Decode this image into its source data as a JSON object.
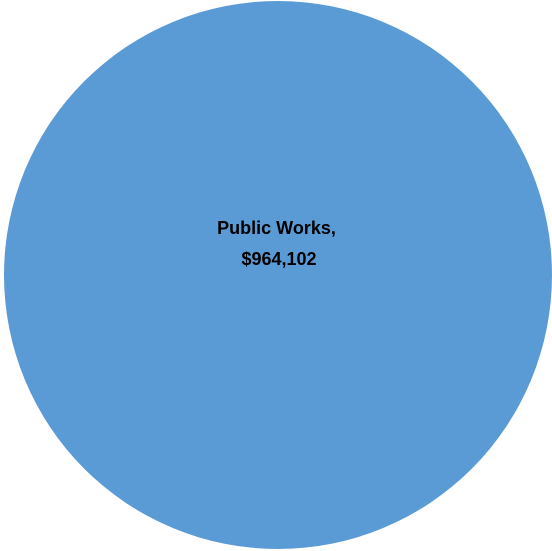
{
  "chart_data": {
    "type": "pie",
    "slices": [
      {
        "category": "Public Works",
        "value": 964102,
        "label_line1": "Public Works,",
        "label_line2": "$964,102",
        "color": "#5b9bd5"
      }
    ]
  }
}
